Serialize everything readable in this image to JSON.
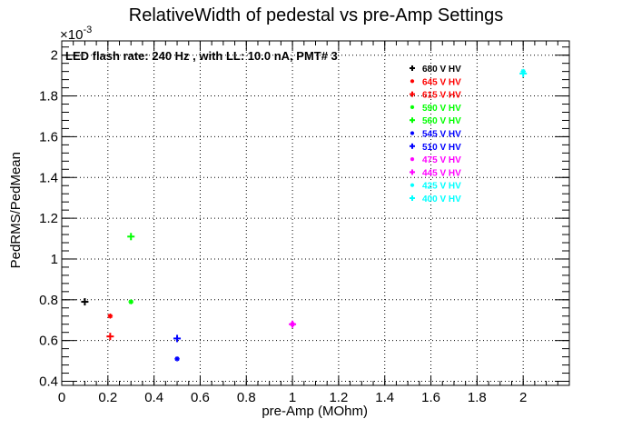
{
  "chart_data": {
    "type": "scatter",
    "title": "RelativeWidth of pedestal vs pre-Amp Settings",
    "xlabel": "pre-Amp (MOhm)",
    "ylabel": "PedRMS/PedMean",
    "y_exponent": "×10",
    "y_exponent_power": "-3",
    "annotation": "LED flash rate: 240 Hz , with LL: 10.0 nA, PMT# 3",
    "xlim": [
      0,
      2.2
    ],
    "ylim": [
      0.38,
      2.07
    ],
    "x_ticks": [
      "0",
      "0.2",
      "0.4",
      "0.6",
      "0.8",
      "1",
      "1.2",
      "1.4",
      "1.6",
      "1.8",
      "2"
    ],
    "x_tick_values": [
      0,
      0.2,
      0.4,
      0.6,
      0.8,
      1,
      1.2,
      1.4,
      1.6,
      1.8,
      2
    ],
    "y_ticks": [
      "0.4",
      "0.6",
      "0.8",
      "1",
      "1.2",
      "1.4",
      "1.6",
      "1.8",
      "2"
    ],
    "y_tick_values": [
      0.4,
      0.6,
      0.8,
      1.0,
      1.2,
      1.4,
      1.6,
      1.8,
      2.0
    ],
    "grid": true,
    "legend_position": "top-right",
    "series": [
      {
        "name": "680 V HV",
        "color": "#000000",
        "marker": "plus",
        "points": [
          [
            0.1,
            0.79
          ]
        ]
      },
      {
        "name": "645 V HV",
        "color": "#ff0000",
        "marker": "star",
        "points": [
          [
            0.21,
            0.72
          ]
        ]
      },
      {
        "name": "615 V HV",
        "color": "#ff0000",
        "marker": "plus",
        "points": [
          [
            0.21,
            0.62
          ]
        ]
      },
      {
        "name": "590 V HV",
        "color": "#00ff00",
        "marker": "star",
        "points": [
          [
            0.3,
            0.79
          ]
        ]
      },
      {
        "name": "560 V HV",
        "color": "#00ff00",
        "marker": "plus",
        "points": [
          [
            0.3,
            1.11
          ]
        ]
      },
      {
        "name": "545 V HV",
        "color": "#0000ff",
        "marker": "star",
        "points": [
          [
            0.5,
            0.51
          ]
        ]
      },
      {
        "name": "510 V HV",
        "color": "#0000ff",
        "marker": "plus",
        "points": [
          [
            0.5,
            0.61
          ]
        ]
      },
      {
        "name": "475 V HV",
        "color": "#ff00ff",
        "marker": "star",
        "points": [
          [
            1.0,
            0.68
          ]
        ]
      },
      {
        "name": "445 V HV",
        "color": "#ff00ff",
        "marker": "plus",
        "points": [
          [
            1.0,
            0.68
          ]
        ]
      },
      {
        "name": "425 V HV",
        "color": "#00ffff",
        "marker": "star",
        "points": [
          [
            2.0,
            1.92
          ]
        ]
      },
      {
        "name": "400 V HV",
        "color": "#00ffff",
        "marker": "plus",
        "points": [
          [
            2.0,
            1.91
          ]
        ]
      }
    ]
  }
}
